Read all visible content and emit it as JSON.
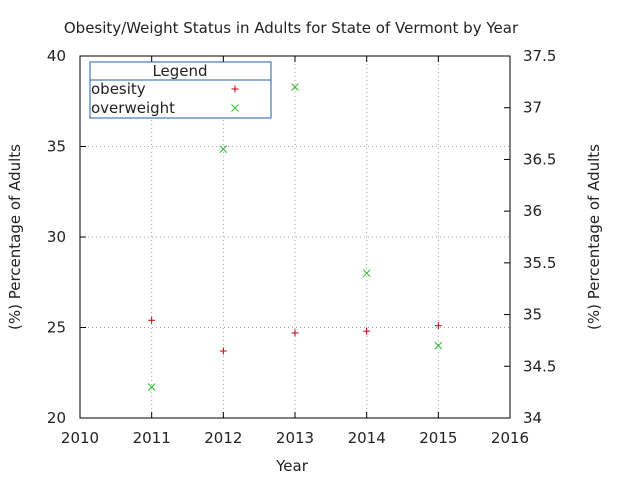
{
  "chart_data": {
    "type": "scatter",
    "title": "Obesity/Weight Status in Adults for State of Vermont by Year",
    "xlabel": "Year",
    "ylabel": "(%) Percentage of Adults",
    "y2label": "(%) Percentage of Adults",
    "xlim": [
      2010,
      2016
    ],
    "ylim": [
      20,
      40
    ],
    "y2lim": [
      34,
      37.5
    ],
    "x_ticks": [
      "2010",
      "2011",
      "2012",
      "2013",
      "2014",
      "2015",
      "2016"
    ],
    "y_ticks": [
      "20",
      "25",
      "30",
      "35",
      "40"
    ],
    "y2_ticks": [
      "34",
      "34.5",
      "35",
      "35.5",
      "36",
      "36.5",
      "37",
      "37.5"
    ],
    "grid": true,
    "legend_title": "Legend",
    "legend_position": "top-left",
    "series": [
      {
        "name": "obesity",
        "marker": "plus",
        "color": "#cc0000",
        "axis": "y",
        "x": [
          2011,
          2012,
          2013,
          2014,
          2015
        ],
        "y": [
          25.4,
          23.7,
          24.7,
          24.8,
          25.1
        ]
      },
      {
        "name": "overweight",
        "marker": "cross",
        "color": "#33bb33",
        "axis": "y2",
        "x": [
          2011,
          2012,
          2013,
          2014,
          2015
        ],
        "y": [
          34.3,
          36.6,
          37.2,
          35.4,
          34.7
        ]
      }
    ]
  }
}
